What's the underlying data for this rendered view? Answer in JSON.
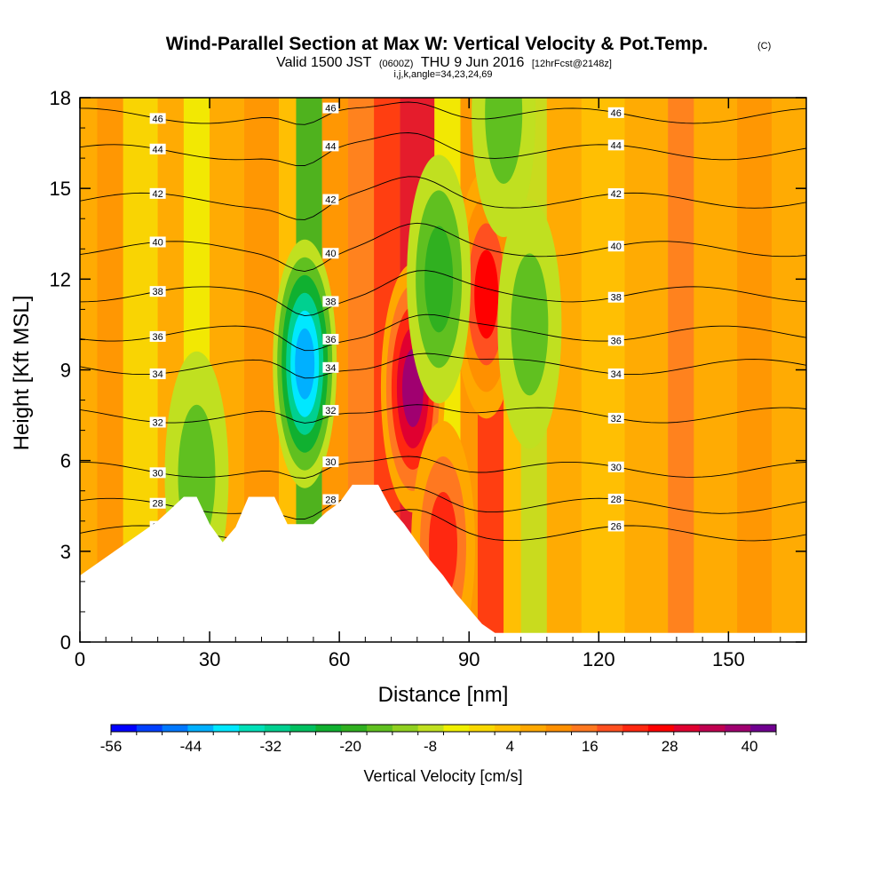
{
  "chart_data": {
    "type": "heatmap",
    "title": "Wind-Parallel Section at Max W: Vertical Velocity & Pot.Temp.",
    "title_mark": "(C)",
    "subtitle": {
      "valid": "Valid 1500 JST",
      "utc": "(0600Z)",
      "date": "THU 9 Jun 2016",
      "fcst": "[12hrFcst@2148z]"
    },
    "subtitle2": "i,j,k,angle=34,23,24,69",
    "xlabel": "Distance [nm]",
    "ylabel": "Height [Kft MSL]",
    "xlim": [
      0,
      168
    ],
    "ylim": [
      0,
      18
    ],
    "x_ticks": [
      "0",
      "30",
      "60",
      "90",
      "120",
      "150"
    ],
    "x_tick_values": [
      0,
      30,
      60,
      90,
      120,
      150
    ],
    "y_ticks": [
      "0",
      "3",
      "6",
      "9",
      "12",
      "15",
      "18"
    ],
    "y_tick_values": [
      0,
      3,
      6,
      9,
      12,
      15,
      18
    ],
    "colorbar": {
      "label": "Vertical Velocity [cm/s]",
      "tick_labels": [
        "-56",
        "-44",
        "-32",
        "-20",
        "-8",
        "4",
        "16",
        "28",
        "40"
      ],
      "tick_values": [
        -56,
        -44,
        -32,
        -20,
        -8,
        4,
        16,
        28,
        40
      ],
      "min": -56,
      "max": 44,
      "step": 4,
      "colors": [
        "#0000ff",
        "#0040ff",
        "#0078ff",
        "#00b0ff",
        "#00e8ff",
        "#00e0b8",
        "#00d090",
        "#00c060",
        "#10b030",
        "#30b020",
        "#60c020",
        "#90d020",
        "#c0e020",
        "#f0f000",
        "#f8d800",
        "#ffc000",
        "#ffa800",
        "#ff9000",
        "#ff7820",
        "#ff5020",
        "#ff2810",
        "#ff0000",
        "#e00030",
        "#c00050",
        "#a00070",
        "#700090"
      ]
    },
    "potential_temperature_isolines": [
      {
        "value": "26",
        "height": 3.6
      },
      {
        "value": "28",
        "height": 4.5
      },
      {
        "value": "30",
        "height": 5.7
      },
      {
        "value": "32",
        "height": 7.5
      },
      {
        "value": "34",
        "height": 9.1
      },
      {
        "value": "36",
        "height": 10.2
      },
      {
        "value": "38",
        "height": 11.5
      },
      {
        "value": "40",
        "height": 13.0
      },
      {
        "value": "42",
        "height": 14.6
      },
      {
        "value": "44",
        "height": 16.2
      },
      {
        "value": "46",
        "height": 17.4
      }
    ],
    "terrain": [
      {
        "x": 0,
        "h": 2.2
      },
      {
        "x": 3,
        "h": 2.5
      },
      {
        "x": 6,
        "h": 2.8
      },
      {
        "x": 9,
        "h": 3.1
      },
      {
        "x": 12,
        "h": 3.4
      },
      {
        "x": 15,
        "h": 3.7
      },
      {
        "x": 18,
        "h": 4.0
      },
      {
        "x": 21,
        "h": 4.4
      },
      {
        "x": 24,
        "h": 4.8
      },
      {
        "x": 27,
        "h": 4.8
      },
      {
        "x": 30,
        "h": 3.9
      },
      {
        "x": 33,
        "h": 3.3
      },
      {
        "x": 36,
        "h": 3.8
      },
      {
        "x": 39,
        "h": 4.8
      },
      {
        "x": 42,
        "h": 4.8
      },
      {
        "x": 45,
        "h": 4.8
      },
      {
        "x": 48,
        "h": 3.9
      },
      {
        "x": 51,
        "h": 3.9
      },
      {
        "x": 54,
        "h": 3.9
      },
      {
        "x": 57,
        "h": 4.3
      },
      {
        "x": 60,
        "h": 4.6
      },
      {
        "x": 63,
        "h": 5.2
      },
      {
        "x": 66,
        "h": 5.2
      },
      {
        "x": 69,
        "h": 5.2
      },
      {
        "x": 72,
        "h": 4.4
      },
      {
        "x": 75,
        "h": 3.9
      },
      {
        "x": 78,
        "h": 3.3
      },
      {
        "x": 81,
        "h": 2.7
      },
      {
        "x": 84,
        "h": 2.2
      },
      {
        "x": 87,
        "h": 1.6
      },
      {
        "x": 90,
        "h": 1.1
      },
      {
        "x": 93,
        "h": 0.6
      },
      {
        "x": 96,
        "h": 0.3
      },
      {
        "x": 100,
        "h": 0.3
      },
      {
        "x": 140,
        "h": 0.3
      },
      {
        "x": 150,
        "h": 0.3
      },
      {
        "x": 160,
        "h": 0.3
      },
      {
        "x": 168,
        "h": 0.3
      }
    ],
    "updraft_cores": [
      {
        "x": 77,
        "h": 8.4,
        "w": 42
      },
      {
        "x": 94,
        "h": 11.5,
        "w": 30
      },
      {
        "x": 84,
        "h": 3.2,
        "w": 26
      }
    ],
    "downdraft_cores": [
      {
        "x": 52,
        "h": 9.2,
        "w": -44
      },
      {
        "x": 83,
        "h": 12.0,
        "w": -20
      },
      {
        "x": 104,
        "h": 10.5,
        "w": -16
      },
      {
        "x": 98,
        "h": 17.5,
        "w": -16
      },
      {
        "x": 27,
        "h": 5.5,
        "w": -16
      }
    ]
  }
}
